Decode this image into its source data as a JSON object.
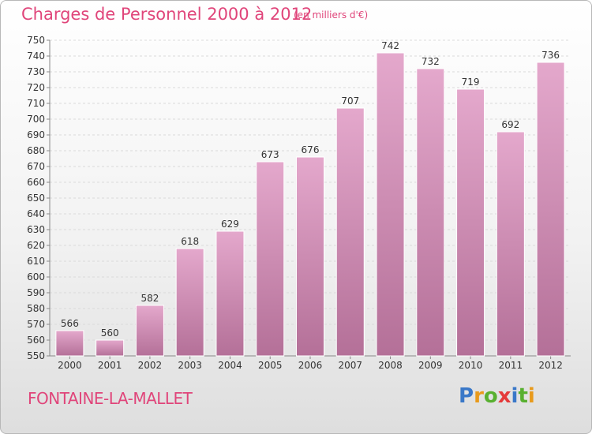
{
  "header": {
    "title": "Charges de Personnel 2000 à 2012",
    "subtitle": "(en milliers d'€)"
  },
  "footer": {
    "commune": "FONTAINE-LA-MALLET",
    "logo": {
      "letters": [
        "P",
        "r",
        "o",
        "x",
        "i",
        "t",
        "i"
      ],
      "colors": [
        "#3a78c8",
        "#e89a1c",
        "#58b030",
        "#e53a3a",
        "#3a78c8",
        "#58b030",
        "#e89a1c"
      ]
    }
  },
  "colors": {
    "bar": "#dc9cc4",
    "bar_dark": "#b8709c",
    "title": "#e0457a"
  },
  "chart_data": {
    "type": "bar",
    "categories": [
      "2000",
      "2001",
      "2002",
      "2003",
      "2004",
      "2005",
      "2006",
      "2007",
      "2008",
      "2009",
      "2010",
      "2011",
      "2012"
    ],
    "values": [
      566,
      560,
      582,
      618,
      629,
      673,
      676,
      707,
      742,
      732,
      719,
      692,
      736
    ],
    "data_labels": [
      "566",
      "560",
      "582",
      "618",
      "629",
      "673",
      "676",
      "707",
      "742",
      "732",
      "719",
      "692",
      "736"
    ],
    "ylim": [
      550,
      750
    ],
    "yticks": [
      "550",
      "560",
      "570",
      "580",
      "590",
      "600",
      "610",
      "620",
      "630",
      "640",
      "650",
      "660",
      "670",
      "680",
      "690",
      "700",
      "710",
      "720",
      "730",
      "740",
      "750"
    ],
    "grid": true,
    "xlabel": "",
    "ylabel": ""
  }
}
